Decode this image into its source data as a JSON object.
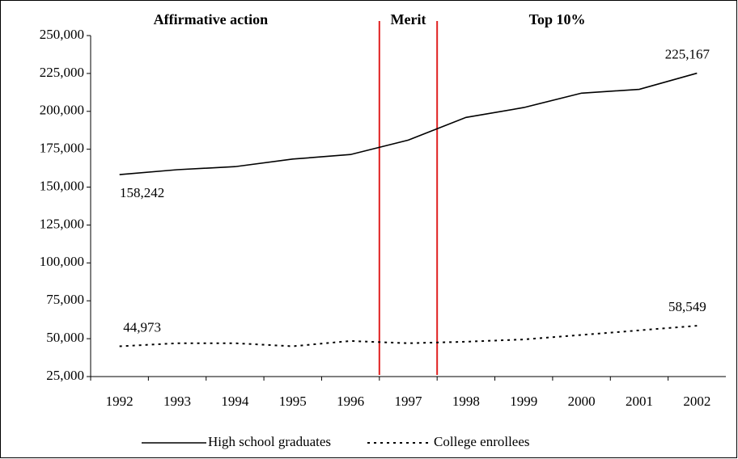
{
  "chart_data": {
    "type": "line",
    "annotations": [
      "Affirmative action",
      "Merit",
      "Top 10%"
    ],
    "categories": [
      "1992",
      "1993",
      "1994",
      "1995",
      "1996",
      "1997",
      "1998",
      "1999",
      "2000",
      "2001",
      "2002"
    ],
    "series": [
      {
        "name": "High school graduates",
        "color": "#000000",
        "dash": "solid",
        "values": [
          158242,
          161500,
          163500,
          168500,
          171500,
          181000,
          196000,
          202500,
          212000,
          214500,
          225167
        ],
        "value_labels": [
          "158,242",
          null,
          null,
          null,
          null,
          null,
          null,
          null,
          null,
          null,
          "225,167"
        ]
      },
      {
        "name": "College enrollees",
        "color": "#000000",
        "dash": "dotted",
        "values": [
          44973,
          47000,
          47000,
          45000,
          48500,
          47000,
          48000,
          49500,
          52500,
          55500,
          58549
        ],
        "value_labels": [
          "44,973",
          null,
          null,
          null,
          null,
          null,
          null,
          null,
          null,
          null,
          "58,549"
        ]
      }
    ],
    "ylim": [
      25000,
      250000
    ],
    "yticks": [
      {
        "value": 25000,
        "label": "25,000"
      },
      {
        "value": 50000,
        "label": "50,000"
      },
      {
        "value": 75000,
        "label": "75,000"
      },
      {
        "value": 100000,
        "label": "100,000"
      },
      {
        "value": 125000,
        "label": "125,000"
      },
      {
        "value": 150000,
        "label": "150,000"
      },
      {
        "value": 175000,
        "label": "175,000"
      },
      {
        "value": 200000,
        "label": "200,000"
      },
      {
        "value": 225000,
        "label": "225,000"
      },
      {
        "value": 250000,
        "label": "250,000"
      }
    ],
    "grid": false
  }
}
